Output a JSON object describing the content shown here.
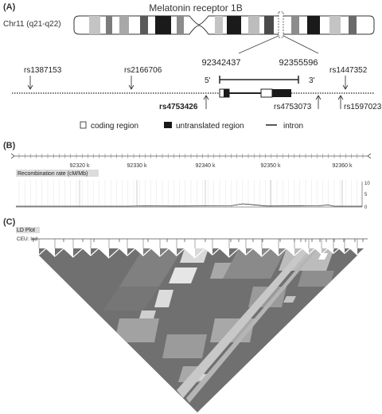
{
  "panel_a": {
    "label": "(A)",
    "title": "Melatonin receptor 1B",
    "chromosome_label": "Chr11 (q21-q22)",
    "gene_start": "92342437",
    "gene_end": "92355596",
    "strand_left": "5'",
    "strand_right": "3'",
    "snps_top": [
      "rs1387153",
      "rs2166706",
      "rs1447352"
    ],
    "snps_bottom": [
      "rs4753426",
      "rs4753073",
      "rs1597023"
    ],
    "legend": {
      "coding": "coding region",
      "untranslated": "untranslated region",
      "intron": "intron"
    }
  },
  "panel_b": {
    "label": "(B)",
    "axis_ticks": [
      "92320 k",
      "92330 k",
      "92340 k",
      "92350 k",
      "92360 k"
    ],
    "track_title": "Recombination rate (cM/Mb)",
    "y_ticks": [
      "10",
      "5",
      "0"
    ]
  },
  "panel_c": {
    "label": "(C)",
    "plot_title": "LD Plot",
    "color_scheme": "CEU: lod"
  },
  "colors": {
    "dark_block": "#1a1a1a",
    "ld_dark": "#6b6b6b",
    "ld_mid": "#9a9a9a",
    "ld_light": "#cfcfcf"
  }
}
